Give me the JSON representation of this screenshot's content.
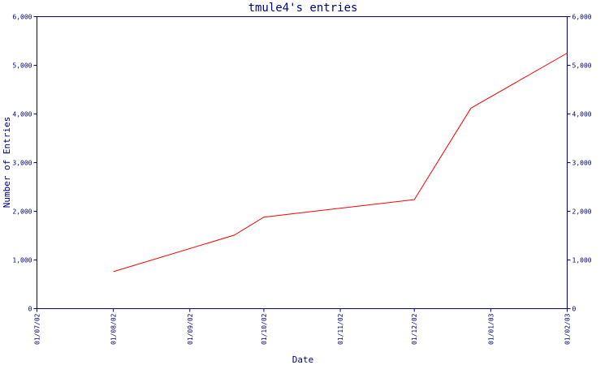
{
  "chart_data": {
    "type": "line",
    "title": "tmule4's entries",
    "xlabel": "Date",
    "ylabel": "Number of Entries",
    "ylim": [
      0,
      6000
    ],
    "yticks": [
      0,
      1000,
      2000,
      3000,
      4000,
      5000,
      6000
    ],
    "ytick_labels": [
      "0",
      "1,000",
      "2,000",
      "3,000",
      "4,000",
      "5,000",
      "6,000"
    ],
    "xlim": [
      "2002-07-01",
      "2003-02-01"
    ],
    "xticks": [
      "2002-07-01",
      "2002-08-01",
      "2002-09-01",
      "2002-10-01",
      "2002-11-01",
      "2002-12-01",
      "2003-01-01",
      "2003-02-01"
    ],
    "xtick_labels": [
      "01/07/02",
      "01/08/02",
      "01/09/02",
      "01/10/02",
      "01/11/02",
      "01/12/02",
      "01/01/03",
      "01/02/03"
    ],
    "grid": false,
    "colors": {
      "axis": "#000080",
      "series": "#ff0000"
    },
    "series": [
      {
        "x": [
          "2002-08-01",
          "2002-09-19",
          "2002-10-01",
          "2002-12-01",
          "2002-12-24",
          "2003-02-01"
        ],
        "y": [
          760,
          1510,
          1880,
          2240,
          4120,
          5250
        ]
      }
    ]
  }
}
